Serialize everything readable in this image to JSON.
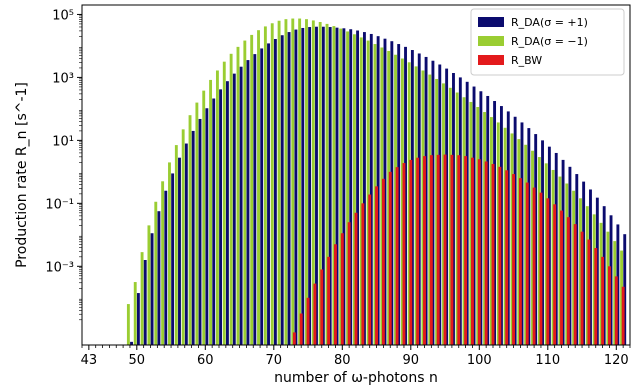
{
  "chart_data": {
    "type": "bar",
    "title": "",
    "xlabel": "number of ω-photons n",
    "ylabel": "Production rate R_n [s^-1]",
    "yscale": "log",
    "xlim": [
      42,
      122
    ],
    "ylim_log10": [
      -5.5,
      5.3
    ],
    "x_ticks": [
      43,
      50,
      60,
      70,
      80,
      90,
      100,
      110,
      120
    ],
    "x_tick_labels": [
      "43",
      "50",
      "60",
      "70",
      "80",
      "90",
      "100",
      "110",
      "120"
    ],
    "y_ticks_log10": [
      -3,
      -1,
      1,
      3,
      5
    ],
    "y_tick_labels": [
      "10⁻³",
      "10⁻¹",
      "10¹",
      "10³",
      "10⁵"
    ],
    "grid": false,
    "legend_position": "top-right",
    "n_values": [
      49,
      50,
      51,
      52,
      53,
      54,
      55,
      56,
      57,
      58,
      59,
      60,
      61,
      62,
      63,
      64,
      65,
      66,
      67,
      68,
      69,
      70,
      71,
      72,
      73,
      74,
      75,
      76,
      77,
      78,
      79,
      80,
      81,
      82,
      83,
      84,
      85,
      86,
      87,
      88,
      89,
      90,
      91,
      92,
      93,
      94,
      95,
      96,
      97,
      98,
      99,
      100,
      101,
      102,
      103,
      104,
      105,
      106,
      107,
      108,
      109,
      110,
      111,
      112,
      113,
      114,
      115,
      116,
      117,
      118,
      119,
      120,
      121
    ],
    "series": [
      {
        "name": "R_DA(σ = +1)",
        "color": "#0b0b6e",
        "offset": 0.23,
        "log10_values": [
          -5.4,
          -3.85,
          -2.8,
          -1.95,
          -1.25,
          -0.6,
          -0.05,
          0.45,
          0.9,
          1.3,
          1.68,
          2.02,
          2.33,
          2.62,
          2.88,
          3.12,
          3.34,
          3.55,
          3.74,
          3.92,
          4.08,
          4.22,
          4.34,
          4.44,
          4.52,
          4.57,
          4.6,
          4.61,
          4.61,
          4.6,
          4.58,
          4.56,
          4.53,
          4.49,
          4.44,
          4.38,
          4.31,
          4.23,
          4.15,
          4.06,
          3.97,
          3.87,
          3.76,
          3.65,
          3.53,
          3.41,
          3.28,
          3.14,
          3.0,
          2.86,
          2.71,
          2.56,
          2.41,
          2.25,
          2.09,
          1.92,
          1.75,
          1.57,
          1.39,
          1.2,
          1.0,
          0.8,
          0.6,
          0.38,
          0.16,
          -0.07,
          -0.31,
          -0.56,
          -0.82,
          -1.09,
          -1.38,
          -1.67,
          -1.98
        ]
      },
      {
        "name": "R_DA(σ = −1)",
        "color": "#9acd32",
        "offset": -0.23,
        "log10_values": [
          -4.2,
          -3.5,
          -2.55,
          -1.7,
          -0.95,
          -0.3,
          0.3,
          0.85,
          1.35,
          1.8,
          2.2,
          2.58,
          2.92,
          3.22,
          3.5,
          3.75,
          3.97,
          4.17,
          4.35,
          4.5,
          4.62,
          4.72,
          4.8,
          4.85,
          4.87,
          4.87,
          4.85,
          4.81,
          4.76,
          4.7,
          4.63,
          4.55,
          4.46,
          4.37,
          4.27,
          4.17,
          4.06,
          3.95,
          3.84,
          3.72,
          3.6,
          3.48,
          3.35,
          3.22,
          3.09,
          2.95,
          2.81,
          2.67,
          2.52,
          2.37,
          2.22,
          2.06,
          1.9,
          1.74,
          1.57,
          1.4,
          1.22,
          1.04,
          0.86,
          0.67,
          0.47,
          0.27,
          0.06,
          -0.15,
          -0.37,
          -0.6,
          -0.84,
          -1.09,
          -1.35,
          -1.62,
          -1.9,
          -2.2,
          -2.5
        ]
      },
      {
        "name": "R_BW",
        "color": "#e31a1c",
        "offset": 0,
        "log10_values": [
          null,
          null,
          null,
          null,
          null,
          null,
          null,
          null,
          null,
          null,
          null,
          null,
          null,
          null,
          null,
          null,
          null,
          null,
          null,
          null,
          null,
          null,
          null,
          null,
          -5.1,
          -4.5,
          -4.0,
          -3.55,
          -3.1,
          -2.7,
          -2.3,
          -1.95,
          -1.6,
          -1.3,
          -1.0,
          -0.72,
          -0.46,
          -0.22,
          0.0,
          0.15,
          0.28,
          0.38,
          0.45,
          0.5,
          0.53,
          0.54,
          0.55,
          0.54,
          0.53,
          0.5,
          0.45,
          0.4,
          0.33,
          0.25,
          0.16,
          0.05,
          -0.07,
          -0.2,
          -0.34,
          -0.5,
          -0.66,
          -0.84,
          -1.03,
          -1.23,
          -1.44,
          -1.66,
          -1.9,
          -2.15,
          -2.42,
          -2.7,
          -3.0,
          -3.32,
          -3.65
        ]
      }
    ]
  }
}
